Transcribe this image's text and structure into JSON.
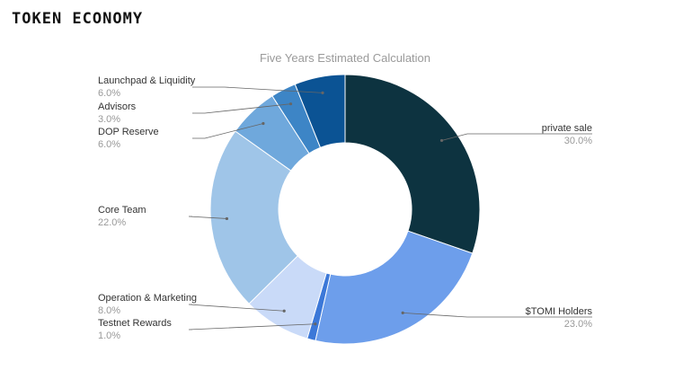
{
  "page": {
    "title": "TOKEN ECONOMY"
  },
  "colors": {
    "private_sale": "#0d3340",
    "stomi_holders": "#6d9eeb",
    "testnet_rewards": "#3c78d8",
    "operation_marketing": "#c9daf8",
    "core_team": "#9fc5e8",
    "dop_reserve": "#6fa8dc",
    "advisors": "#3d85c6",
    "launchpad_liquidity": "#0b5394",
    "leader_line": "#666666"
  },
  "chart_data": {
    "type": "pie",
    "donut": true,
    "title": "Five Years Estimated Calculation",
    "slices": [
      {
        "label": "private sale",
        "value": 30.0,
        "pct_text": "30.0%"
      },
      {
        "label": "$TOMI Holders",
        "value": 23.0,
        "pct_text": "23.0%"
      },
      {
        "label": "Testnet Rewards",
        "value": 1.0,
        "pct_text": "1.0%"
      },
      {
        "label": "Operation & Marketing",
        "value": 8.0,
        "pct_text": "8.0%"
      },
      {
        "label": "Core Team",
        "value": 22.0,
        "pct_text": "22.0%"
      },
      {
        "label": "DOP Reserve",
        "value": 6.0,
        "pct_text": "6.0%"
      },
      {
        "label": "Advisors",
        "value": 3.0,
        "pct_text": "3.0%"
      },
      {
        "label": "Launchpad & Liquidity",
        "value": 6.0,
        "pct_text": "6.0%"
      }
    ]
  }
}
